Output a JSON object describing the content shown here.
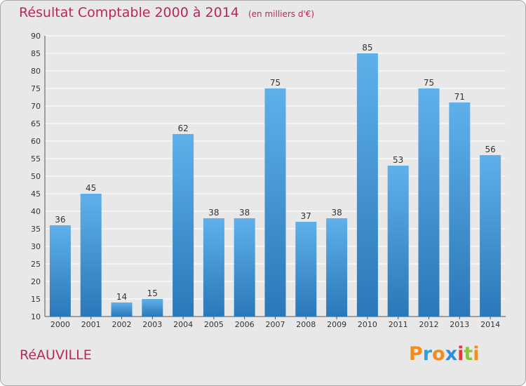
{
  "header": {
    "title": "Résultat Comptable 2000 à 2014",
    "subtitle": "(en milliers d'€)"
  },
  "footer": {
    "commune": "RéAUVILLE",
    "logo_text": "Proxiti",
    "logo_colors": [
      "#f28c1b",
      "#29a3dc",
      "#f28c1b",
      "#2f8ed8",
      "#e23b3b",
      "#8bc43f",
      "#f28c1b"
    ]
  },
  "colors": {
    "title": "#b8285a",
    "bar_top": "#5fb0ea",
    "bar_bottom": "#2a78b8",
    "plot_bg": "#e8e8e8",
    "grid": "#ffffff",
    "axis": "#555555"
  },
  "chart_data": {
    "type": "bar",
    "title": "Résultat Comptable 2000 à 2014",
    "xlabel": "",
    "ylabel": "",
    "categories": [
      "2000",
      "2001",
      "2002",
      "2003",
      "2004",
      "2005",
      "2006",
      "2007",
      "2008",
      "2009",
      "2010",
      "2011",
      "2012",
      "2013",
      "2014"
    ],
    "values": [
      36,
      45,
      14,
      15,
      62,
      38,
      38,
      75,
      37,
      38,
      85,
      53,
      75,
      71,
      56
    ],
    "ylim": [
      10,
      90
    ],
    "yticks": [
      10,
      15,
      20,
      25,
      30,
      35,
      40,
      45,
      50,
      55,
      60,
      65,
      70,
      75,
      80,
      85,
      90
    ],
    "grid": true,
    "data_labels": true
  }
}
